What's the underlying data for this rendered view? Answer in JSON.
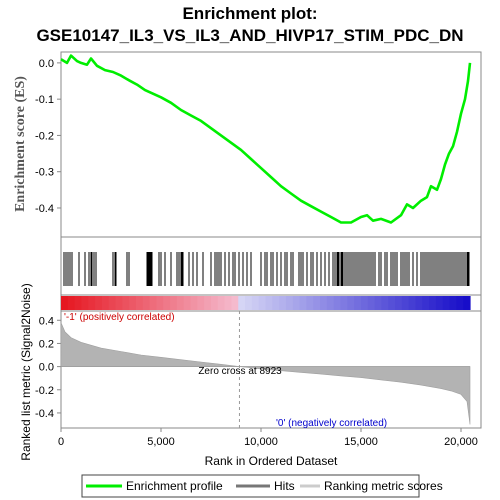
{
  "chart_data": {
    "type": "line",
    "title_line1": "Enrichment plot:",
    "title_line2": "GSE10147_IL3_VS_IL3_AND_HIVP17_STIM_PDC_DN",
    "es_panel": {
      "ylabel": "Enrichment score (ES)",
      "yticks": [
        "0.0",
        "-0.1",
        "-0.2",
        "-0.3",
        "-0.4"
      ],
      "ylim": [
        -0.48,
        0.03
      ],
      "series_color": "#00ee00",
      "points": [
        [
          0,
          0.01
        ],
        [
          300,
          0.0
        ],
        [
          500,
          0.02
        ],
        [
          800,
          0.005
        ],
        [
          1000,
          0.0
        ],
        [
          1300,
          -0.005
        ],
        [
          1500,
          0.012
        ],
        [
          1800,
          -0.008
        ],
        [
          2200,
          -0.02
        ],
        [
          2600,
          -0.025
        ],
        [
          3000,
          -0.035
        ],
        [
          3400,
          -0.048
        ],
        [
          3800,
          -0.06
        ],
        [
          4200,
          -0.075
        ],
        [
          4600,
          -0.085
        ],
        [
          5000,
          -0.095
        ],
        [
          5500,
          -0.11
        ],
        [
          6000,
          -0.13
        ],
        [
          6500,
          -0.145
        ],
        [
          7000,
          -0.16
        ],
        [
          7500,
          -0.18
        ],
        [
          8000,
          -0.2
        ],
        [
          8500,
          -0.22
        ],
        [
          9000,
          -0.24
        ],
        [
          9500,
          -0.265
        ],
        [
          10000,
          -0.29
        ],
        [
          10500,
          -0.315
        ],
        [
          11000,
          -0.34
        ],
        [
          11500,
          -0.36
        ],
        [
          12000,
          -0.38
        ],
        [
          12500,
          -0.395
        ],
        [
          13000,
          -0.41
        ],
        [
          13500,
          -0.425
        ],
        [
          14000,
          -0.44
        ],
        [
          14500,
          -0.44
        ],
        [
          15000,
          -0.425
        ],
        [
          15300,
          -0.42
        ],
        [
          15600,
          -0.435
        ],
        [
          16000,
          -0.43
        ],
        [
          16500,
          -0.44
        ],
        [
          17000,
          -0.42
        ],
        [
          17300,
          -0.39
        ],
        [
          17600,
          -0.4
        ],
        [
          18000,
          -0.38
        ],
        [
          18300,
          -0.37
        ],
        [
          18500,
          -0.34
        ],
        [
          18800,
          -0.35
        ],
        [
          19000,
          -0.32
        ],
        [
          19200,
          -0.28
        ],
        [
          19400,
          -0.25
        ],
        [
          19600,
          -0.23
        ],
        [
          19800,
          -0.19
        ],
        [
          20000,
          -0.14
        ],
        [
          20200,
          -0.1
        ],
        [
          20350,
          -0.05
        ],
        [
          20450,
          0.0
        ]
      ]
    },
    "hits_panel": {
      "hit_positions": [
        150,
        250,
        350,
        450,
        550,
        900,
        1200,
        1400,
        1500,
        1550,
        1650,
        1750,
        2600,
        2700,
        2750,
        3300,
        3400,
        4300,
        4350,
        4400,
        4450,
        4500,
        4550,
        4900,
        5000,
        5200,
        5500,
        5800,
        5900,
        6000,
        6050,
        6100,
        6400,
        6600,
        6800,
        7100,
        7500,
        7700,
        7800,
        7900,
        8000,
        8200,
        8400,
        8600,
        8700,
        8900,
        9100,
        9300,
        9500,
        10000,
        10200,
        10300,
        10500,
        10600,
        10800,
        11000,
        11200,
        11300,
        11500,
        11600,
        11900,
        12000,
        12100,
        12300,
        12500,
        12600,
        12800,
        13000,
        13200,
        13400,
        13600,
        13700,
        13800,
        13850,
        13900,
        14000,
        14050,
        14100,
        14200,
        14300,
        14400,
        14500,
        14600,
        14700,
        14800,
        14900,
        15000,
        15100,
        15200,
        15300,
        15400,
        15500,
        15600,
        15700,
        15900,
        16000,
        16200,
        16300,
        16500,
        16600,
        16700,
        16800,
        17000,
        17100,
        17200,
        17300,
        17400,
        17600,
        17800,
        18000,
        18100,
        18200,
        18300,
        18400,
        18500,
        18600,
        18700,
        18800,
        18900,
        19000,
        19100,
        19200,
        19300,
        19400,
        19500,
        19600,
        19700,
        19800,
        19900,
        20000,
        20100,
        20200,
        20300,
        20350,
        20400
      ]
    },
    "rank_panel": {
      "ylabel": "Ranked list metric (Signal2Noise)",
      "yticks": [
        "0.4",
        "0.2",
        "0.0",
        "-0.2",
        "-0.4"
      ],
      "ylim": [
        -0.53,
        0.48
      ],
      "curve": [
        [
          0,
          0.38
        ],
        [
          200,
          0.3
        ],
        [
          500,
          0.25
        ],
        [
          1000,
          0.21
        ],
        [
          2000,
          0.16
        ],
        [
          3000,
          0.13
        ],
        [
          4000,
          0.1
        ],
        [
          5000,
          0.08
        ],
        [
          6000,
          0.06
        ],
        [
          7000,
          0.04
        ],
        [
          8000,
          0.02
        ],
        [
          8923,
          0.0
        ],
        [
          10000,
          -0.02
        ],
        [
          11000,
          -0.035
        ],
        [
          12000,
          -0.05
        ],
        [
          13000,
          -0.065
        ],
        [
          14000,
          -0.08
        ],
        [
          15000,
          -0.095
        ],
        [
          16000,
          -0.115
        ],
        [
          17000,
          -0.135
        ],
        [
          18000,
          -0.16
        ],
        [
          19000,
          -0.19
        ],
        [
          19500,
          -0.21
        ],
        [
          20000,
          -0.24
        ],
        [
          20300,
          -0.3
        ],
        [
          20450,
          -0.5
        ]
      ],
      "zero_cross": 8923,
      "zero_cross_label": "Zero cross at 8923",
      "pos_label": "'-1' (positively correlated)",
      "neg_label": "'0' (negatively correlated)",
      "pos_color": "#cc0000",
      "neg_color": "#0000cc"
    },
    "xaxis": {
      "xlabel": "Rank in Ordered Dataset",
      "xticks": [
        0,
        5000,
        10000,
        15000,
        20000
      ],
      "xtick_labels": [
        "0",
        "5,000",
        "10,000",
        "15,000",
        "20,000"
      ],
      "xlim": [
        0,
        21000
      ],
      "n_genes": 20450
    },
    "legend": {
      "placement": "bottom",
      "items": [
        {
          "label": "Enrichment profile",
          "color": "#00ee00"
        },
        {
          "label": "Hits",
          "color": "#777777"
        },
        {
          "label": "Ranking metric scores",
          "color": "#cccccc"
        }
      ]
    }
  }
}
